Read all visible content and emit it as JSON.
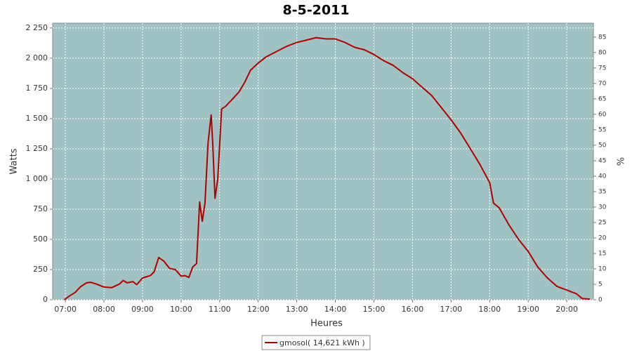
{
  "chart_data": {
    "type": "line",
    "title": "8-5-2011",
    "x_label": "Heures",
    "y_label": "Watts",
    "y2_label": "%",
    "x": [
      6.97,
      7.1,
      7.25,
      7.4,
      7.55,
      7.65,
      7.8,
      8.0,
      8.2,
      8.4,
      8.5,
      8.6,
      8.75,
      8.85,
      9.0,
      9.2,
      9.3,
      9.42,
      9.55,
      9.7,
      9.85,
      10.0,
      10.1,
      10.2,
      10.3,
      10.4,
      10.48,
      10.55,
      10.62,
      10.7,
      10.78,
      10.82,
      10.88,
      10.95,
      11.05,
      11.15,
      11.3,
      11.5,
      11.65,
      11.8,
      12.0,
      12.2,
      12.5,
      12.75,
      13.0,
      13.25,
      13.5,
      13.75,
      14.0,
      14.25,
      14.5,
      14.75,
      15.0,
      15.25,
      15.5,
      15.75,
      16.0,
      16.25,
      16.5,
      16.75,
      17.0,
      17.25,
      17.5,
      17.75,
      18.0,
      18.1,
      18.25,
      18.5,
      18.75,
      19.0,
      19.25,
      19.5,
      19.75,
      20.0,
      20.25,
      20.4,
      20.6
    ],
    "series": [
      {
        "name": "gmosol( 14,621 kWh )",
        "color": "#b00000",
        "values": [
          0,
          30,
          60,
          110,
          140,
          145,
          130,
          105,
          100,
          130,
          160,
          140,
          150,
          125,
          180,
          200,
          230,
          350,
          320,
          260,
          250,
          195,
          200,
          185,
          270,
          300,
          810,
          650,
          800,
          1300,
          1530,
          1300,
          840,
          1000,
          1580,
          1600,
          1650,
          1720,
          1800,
          1900,
          1960,
          2010,
          2060,
          2100,
          2130,
          2150,
          2170,
          2160,
          2160,
          2130,
          2090,
          2070,
          2030,
          1980,
          1940,
          1880,
          1830,
          1760,
          1690,
          1590,
          1490,
          1380,
          1250,
          1120,
          970,
          800,
          760,
          620,
          500,
          400,
          270,
          180,
          110,
          80,
          50,
          10,
          5
        ]
      }
    ],
    "xlim": [
      6.67,
      20.69
    ],
    "xticks": [
      {
        "value": 7,
        "label": "07:00"
      },
      {
        "value": 8,
        "label": "08:00"
      },
      {
        "value": 9,
        "label": "09:00"
      },
      {
        "value": 10,
        "label": "10:00"
      },
      {
        "value": 11,
        "label": "11:00"
      },
      {
        "value": 12,
        "label": "12:00"
      },
      {
        "value": 13,
        "label": "13:00"
      },
      {
        "value": 14,
        "label": "14:00"
      },
      {
        "value": 15,
        "label": "15:00"
      },
      {
        "value": 16,
        "label": "16:00"
      },
      {
        "value": 17,
        "label": "17:00"
      },
      {
        "value": 18,
        "label": "18:00"
      },
      {
        "value": 19,
        "label": "19:00"
      },
      {
        "value": 20,
        "label": "20:00"
      }
    ],
    "ylim": [
      0,
      2290
    ],
    "yticks": [
      0,
      250,
      500,
      750,
      {
        "value": 1000,
        "label": "1 000"
      },
      {
        "value": 1250,
        "label": "1 250"
      },
      {
        "value": 1500,
        "label": "1 500"
      },
      {
        "value": 1750,
        "label": "1 750"
      },
      {
        "value": 2000,
        "label": "2 000"
      },
      {
        "value": 2250,
        "label": "2 250"
      }
    ],
    "y2lim": [
      0,
      89.5
    ],
    "y2ticks": [
      0,
      5,
      10,
      15,
      20,
      25,
      30,
      35,
      40,
      45,
      50,
      55,
      60,
      65,
      70,
      75,
      80,
      85
    ],
    "grid": true,
    "background": "#a0c2c2",
    "legend": "bottom"
  }
}
